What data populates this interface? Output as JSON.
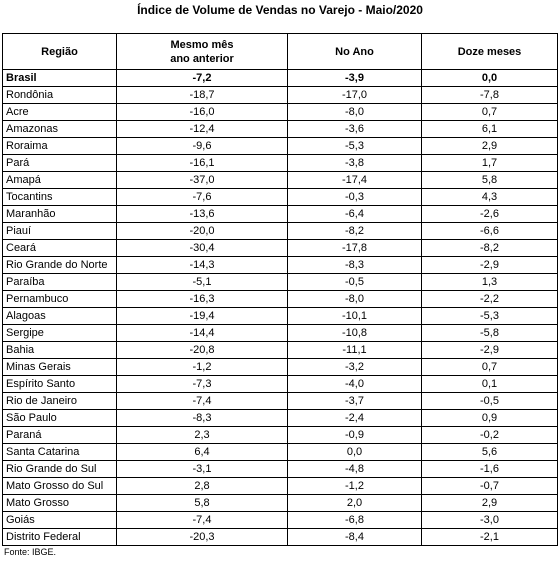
{
  "title": "Índice de Volume de Vendas no Varejo - Maio/2020",
  "table": {
    "headers": [
      "Região",
      "Mesmo mês\nano anterior",
      "No Ano",
      "Doze meses"
    ],
    "rows": [
      [
        "Brasil",
        "-7,2",
        "-3,9",
        "0,0"
      ],
      [
        "Rondônia",
        "-18,7",
        "-17,0",
        "-7,8"
      ],
      [
        "Acre",
        "-16,0",
        "-8,0",
        "0,7"
      ],
      [
        "Amazonas",
        "-12,4",
        "-3,6",
        "6,1"
      ],
      [
        "Roraima",
        "-9,6",
        "-5,3",
        "2,9"
      ],
      [
        "Pará",
        "-16,1",
        "-3,8",
        "1,7"
      ],
      [
        "Amapá",
        "-37,0",
        "-17,4",
        "5,8"
      ],
      [
        "Tocantins",
        "-7,6",
        "-0,3",
        "4,3"
      ],
      [
        "Maranhão",
        "-13,6",
        "-6,4",
        "-2,6"
      ],
      [
        "Piauí",
        "-20,0",
        "-8,2",
        "-6,6"
      ],
      [
        "Ceará",
        "-30,4",
        "-17,8",
        "-8,2"
      ],
      [
        "Rio Grande do Norte",
        "-14,3",
        "-8,3",
        "-2,9"
      ],
      [
        "Paraíba",
        "-5,1",
        "-0,5",
        "1,3"
      ],
      [
        "Pernambuco",
        "-16,3",
        "-8,0",
        "-2,2"
      ],
      [
        "Alagoas",
        "-19,4",
        "-10,1",
        "-5,3"
      ],
      [
        "Sergipe",
        "-14,4",
        "-10,8",
        "-5,8"
      ],
      [
        "Bahia",
        "-20,8",
        "-11,1",
        "-2,9"
      ],
      [
        "Minas Gerais",
        "-1,2",
        "-3,2",
        "0,7"
      ],
      [
        "Espírito Santo",
        "-7,3",
        "-4,0",
        "0,1"
      ],
      [
        "Rio de Janeiro",
        "-7,4",
        "-3,7",
        "-0,5"
      ],
      [
        "São Paulo",
        "-8,3",
        "-2,4",
        "0,9"
      ],
      [
        "Paraná",
        "2,3",
        "-0,9",
        "-0,2"
      ],
      [
        "Santa Catarina",
        "6,4",
        "0,0",
        "5,6"
      ],
      [
        "Rio Grande do Sul",
        "-3,1",
        "-4,8",
        "-1,6"
      ],
      [
        "Mato Grosso do Sul",
        "2,8",
        "-1,2",
        "-0,7"
      ],
      [
        "Mato Grosso",
        "5,8",
        "2,0",
        "2,9"
      ],
      [
        "Goiás",
        "-7,4",
        "-6,8",
        "-3,0"
      ],
      [
        "Distrito Federal",
        "-20,3",
        "-8,4",
        "-2,1"
      ]
    ]
  },
  "source": "Fonte: IBGE."
}
